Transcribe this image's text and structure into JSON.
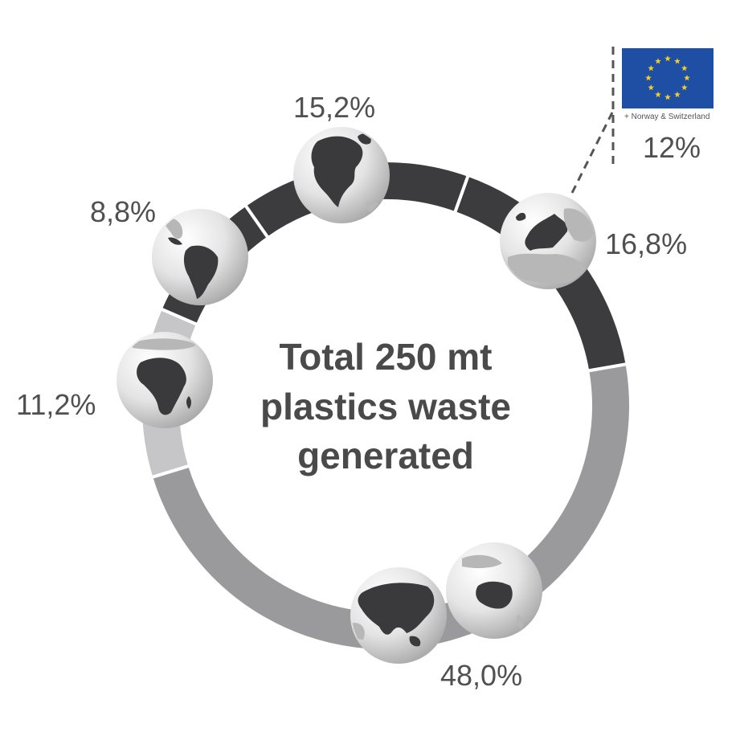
{
  "chart_data": {
    "type": "pie",
    "title": "Total 250 mt plastics waste generated",
    "title_lines": [
      "Total 250 mt",
      "plastics waste",
      "generated"
    ],
    "total": 250,
    "unit": "mt",
    "slices": [
      {
        "region": "North America",
        "label": "15,2%",
        "value": 15.2,
        "color": "#3c3c3e"
      },
      {
        "region": "Europe",
        "label": "16,8%",
        "value": 16.8,
        "color": "#3c3c3e"
      },
      {
        "region": "Asia & Oceania",
        "label": "48,0%",
        "value": 48.0,
        "color": "#9a9a9c"
      },
      {
        "region": "Africa",
        "label": "11,2%",
        "value": 11.2,
        "color": "#c6c6c8"
      },
      {
        "region": "Latin America",
        "label": "8,8%",
        "value": 8.8,
        "color": "#3c3c3e"
      }
    ],
    "inset": {
      "label": "12%",
      "value": 12,
      "note": "+ Norway & Switzerland"
    }
  },
  "colors": {
    "flag_blue": "#1f4fa5",
    "flag_star": "#f5cf1f",
    "globe_land": "#3a3a3c",
    "globe_sea": "#eaeaea"
  },
  "icons": {
    "globes": [
      "globe-north-america-icon",
      "globe-europe-icon",
      "globe-oceania-icon",
      "globe-asia-icon",
      "globe-africa-icon",
      "globe-south-america-icon"
    ],
    "flag": "eu-flag-icon"
  }
}
